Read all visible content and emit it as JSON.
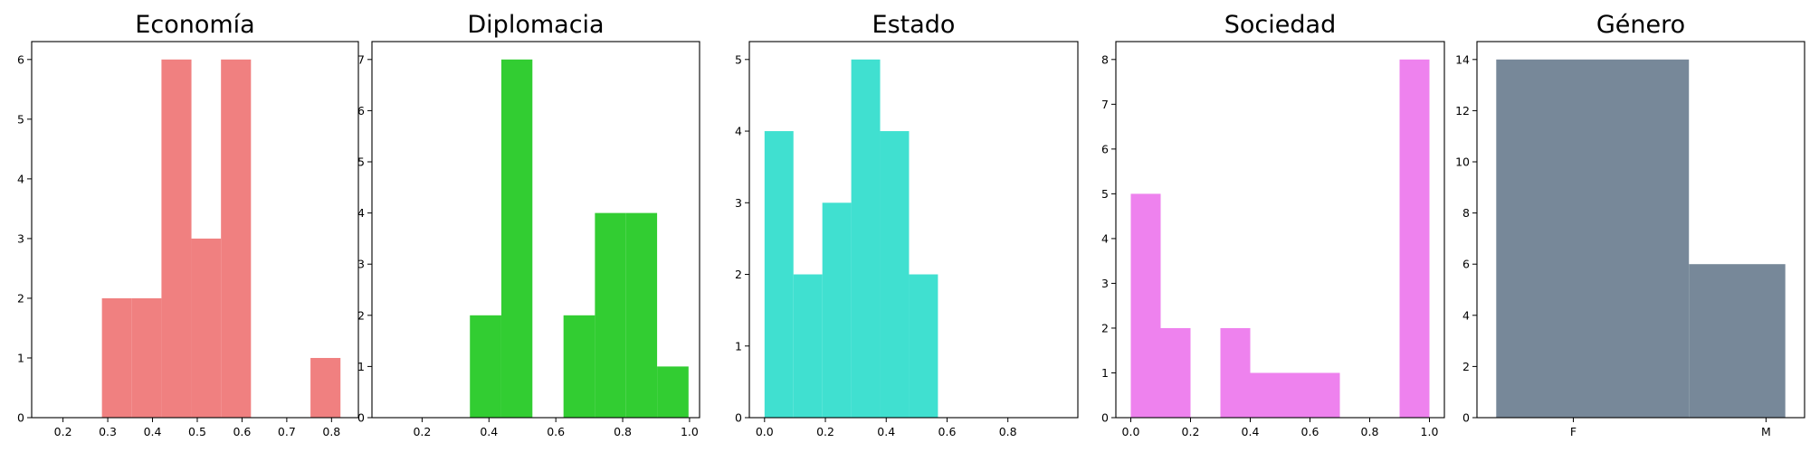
{
  "chart_data": [
    {
      "type": "bar",
      "title": "Economía",
      "color": "#f08080",
      "xlim": [
        0.13,
        0.86
      ],
      "ylim": [
        0,
        6.3
      ],
      "xticks": [
        {
          "v": 0.2,
          "label": "0.2"
        },
        {
          "v": 0.3,
          "label": "0.3"
        },
        {
          "v": 0.4,
          "label": "0.4"
        },
        {
          "v": 0.5,
          "label": "0.5"
        },
        {
          "v": 0.6,
          "label": "0.6"
        },
        {
          "v": 0.7,
          "label": "0.7"
        },
        {
          "v": 0.8,
          "label": "0.8"
        }
      ],
      "yticks": [
        {
          "v": 0,
          "label": "0"
        },
        {
          "v": 1,
          "label": "1"
        },
        {
          "v": 2,
          "label": "2"
        },
        {
          "v": 3,
          "label": "3"
        },
        {
          "v": 4,
          "label": "4"
        },
        {
          "v": 5,
          "label": "5"
        },
        {
          "v": 6,
          "label": "6"
        }
      ],
      "bins": [
        {
          "x0": 0.287,
          "x1": 0.353,
          "count": 2
        },
        {
          "x0": 0.353,
          "x1": 0.42,
          "count": 2
        },
        {
          "x0": 0.42,
          "x1": 0.487,
          "count": 6
        },
        {
          "x0": 0.487,
          "x1": 0.553,
          "count": 3
        },
        {
          "x0": 0.553,
          "x1": 0.62,
          "count": 6
        },
        {
          "x0": 0.62,
          "x1": 0.687,
          "count": 0
        },
        {
          "x0": 0.687,
          "x1": 0.753,
          "count": 0
        },
        {
          "x0": 0.753,
          "x1": 0.82,
          "count": 1
        }
      ]
    },
    {
      "type": "bar",
      "title": "Diplomacia",
      "color": "#32cd32",
      "xlim": [
        0.05,
        1.03
      ],
      "ylim": [
        0,
        7.35
      ],
      "xticks": [
        {
          "v": 0.2,
          "label": "0.2"
        },
        {
          "v": 0.4,
          "label": "0.4"
        },
        {
          "v": 0.6,
          "label": "0.6"
        },
        {
          "v": 0.8,
          "label": "0.8"
        },
        {
          "v": 1.0,
          "label": "1.0"
        }
      ],
      "yticks": [
        {
          "v": 0,
          "label": "0"
        },
        {
          "v": 1,
          "label": "1"
        },
        {
          "v": 2,
          "label": "2"
        },
        {
          "v": 3,
          "label": "3"
        },
        {
          "v": 4,
          "label": "4"
        },
        {
          "v": 5,
          "label": "5"
        },
        {
          "v": 6,
          "label": "6"
        },
        {
          "v": 7,
          "label": "7"
        }
      ],
      "bins": [
        {
          "x0": 0.343,
          "x1": 0.437,
          "count": 2
        },
        {
          "x0": 0.437,
          "x1": 0.53,
          "count": 7
        },
        {
          "x0": 0.53,
          "x1": 0.623,
          "count": 0
        },
        {
          "x0": 0.623,
          "x1": 0.717,
          "count": 2
        },
        {
          "x0": 0.717,
          "x1": 0.81,
          "count": 4
        },
        {
          "x0": 0.81,
          "x1": 0.903,
          "count": 4
        },
        {
          "x0": 0.903,
          "x1": 0.997,
          "count": 1
        }
      ]
    },
    {
      "type": "bar",
      "title": "Estado",
      "color": "#40e0d0",
      "xlim": [
        -0.05,
        1.03
      ],
      "ylim": [
        0,
        5.25
      ],
      "xticks": [
        {
          "v": 0.0,
          "label": "0.0"
        },
        {
          "v": 0.2,
          "label": "0.2"
        },
        {
          "v": 0.4,
          "label": "0.4"
        },
        {
          "v": 0.6,
          "label": "0.6"
        },
        {
          "v": 0.8,
          "label": "0.8"
        }
      ],
      "yticks": [
        {
          "v": 0,
          "label": "0"
        },
        {
          "v": 1,
          "label": "1"
        },
        {
          "v": 2,
          "label": "2"
        },
        {
          "v": 3,
          "label": "3"
        },
        {
          "v": 4,
          "label": "4"
        },
        {
          "v": 5,
          "label": "5"
        }
      ],
      "bins": [
        {
          "x0": 0.0,
          "x1": 0.095,
          "count": 4
        },
        {
          "x0": 0.095,
          "x1": 0.19,
          "count": 2
        },
        {
          "x0": 0.19,
          "x1": 0.285,
          "count": 3
        },
        {
          "x0": 0.285,
          "x1": 0.38,
          "count": 5
        },
        {
          "x0": 0.38,
          "x1": 0.475,
          "count": 4
        },
        {
          "x0": 0.475,
          "x1": 0.57,
          "count": 2
        }
      ]
    },
    {
      "type": "bar",
      "title": "Sociedad",
      "color": "#ee82ee",
      "xlim": [
        -0.05,
        1.05
      ],
      "ylim": [
        0,
        8.4
      ],
      "xticks": [
        {
          "v": 0.0,
          "label": "0.0"
        },
        {
          "v": 0.2,
          "label": "0.2"
        },
        {
          "v": 0.4,
          "label": "0.4"
        },
        {
          "v": 0.6,
          "label": "0.6"
        },
        {
          "v": 0.8,
          "label": "0.8"
        },
        {
          "v": 1.0,
          "label": "1.0"
        }
      ],
      "yticks": [
        {
          "v": 0,
          "label": "0"
        },
        {
          "v": 1,
          "label": "1"
        },
        {
          "v": 2,
          "label": "2"
        },
        {
          "v": 3,
          "label": "3"
        },
        {
          "v": 4,
          "label": "4"
        },
        {
          "v": 5,
          "label": "5"
        },
        {
          "v": 6,
          "label": "6"
        },
        {
          "v": 7,
          "label": "7"
        },
        {
          "v": 8,
          "label": "8"
        }
      ],
      "bins": [
        {
          "x0": 0.0,
          "x1": 0.1,
          "count": 5
        },
        {
          "x0": 0.1,
          "x1": 0.2,
          "count": 2
        },
        {
          "x0": 0.2,
          "x1": 0.3,
          "count": 0
        },
        {
          "x0": 0.3,
          "x1": 0.4,
          "count": 2
        },
        {
          "x0": 0.4,
          "x1": 0.5,
          "count": 1
        },
        {
          "x0": 0.5,
          "x1": 0.6,
          "count": 1
        },
        {
          "x0": 0.6,
          "x1": 0.7,
          "count": 1
        },
        {
          "x0": 0.7,
          "x1": 0.8,
          "count": 0
        },
        {
          "x0": 0.8,
          "x1": 0.9,
          "count": 0
        },
        {
          "x0": 0.9,
          "x1": 1.0,
          "count": 8
        }
      ]
    },
    {
      "type": "bar",
      "title": "Género",
      "color": "#778899",
      "xlim": [
        -0.25,
        1.45
      ],
      "ylim": [
        0,
        14.7
      ],
      "xticks": [
        {
          "v": 0.25,
          "label": "F"
        },
        {
          "v": 1.25,
          "label": "M"
        }
      ],
      "yticks": [
        {
          "v": 0,
          "label": "0"
        },
        {
          "v": 2,
          "label": "2"
        },
        {
          "v": 4,
          "label": "4"
        },
        {
          "v": 6,
          "label": "6"
        },
        {
          "v": 8,
          "label": "8"
        },
        {
          "v": 10,
          "label": "10"
        },
        {
          "v": 12,
          "label": "12"
        },
        {
          "v": 14,
          "label": "14"
        }
      ],
      "bins": [
        {
          "x0": -0.15,
          "x1": 0.85,
          "count": 14,
          "category": "F"
        },
        {
          "x0": 0.85,
          "x1": 1.35,
          "count": 6,
          "category": "M"
        }
      ]
    }
  ]
}
